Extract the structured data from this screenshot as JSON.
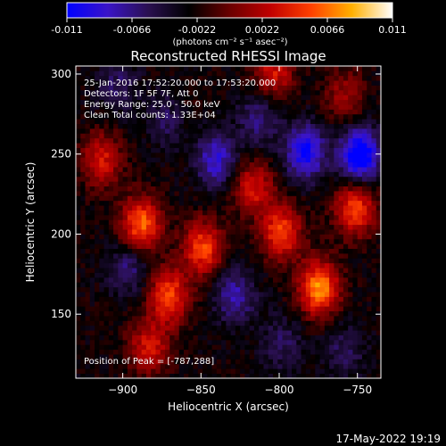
{
  "colorbar": {
    "tick_labels": [
      "-0.011",
      "-0.0066",
      "-0.0022",
      "0.0022",
      "0.0066",
      "0.011"
    ],
    "units_label": "(photons cm⁻² s⁻¹ asec⁻²)",
    "colormap": [
      "#0000ff",
      "#3a14c8",
      "#2a1050",
      "#000000",
      "#6a0000",
      "#c00000",
      "#ff4000",
      "#ffb000",
      "#ffffff"
    ]
  },
  "plot": {
    "title": "Reconstructed RHESSI Image",
    "xlabel": "Heliocentric X (arcsec)",
    "ylabel": "Heliocentric Y (arcsec)",
    "x_tick_labels": [
      "-900",
      "-850",
      "-800",
      "-750"
    ],
    "y_tick_labels": [
      "150",
      "200",
      "250",
      "300"
    ],
    "info_lines": [
      "25-Jan-2016 17:52:20.000 to 17:53:20.000",
      "Detectors: 1F 5F 7F, Att 0",
      "Energy Range: 25.0 - 50.0 keV",
      "Clean    Total counts: 1.33E+04"
    ],
    "peak_label": "Position of Peak = [-787,288]"
  },
  "footer": {
    "timestamp": "17-May-2022 19:19"
  },
  "chart_data": {
    "type": "heatmap",
    "xlabel": "Heliocentric X (arcsec)",
    "ylabel": "Heliocentric Y (arcsec)",
    "xlim": [
      -930,
      -735
    ],
    "ylim": [
      110,
      305
    ],
    "zlim": [
      -0.011,
      0.011
    ],
    "z_units": "photons cm^-2 s^-1 asec^-2",
    "peak_position": [
      -787,
      288
    ],
    "blobs": [
      {
        "x": -890,
        "y": 205,
        "v": 0.009
      },
      {
        "x": -850,
        "y": 190,
        "v": 0.008
      },
      {
        "x": -818,
        "y": 228,
        "v": 0.006
      },
      {
        "x": -800,
        "y": 200,
        "v": 0.008
      },
      {
        "x": -776,
        "y": 165,
        "v": 0.01
      },
      {
        "x": -872,
        "y": 160,
        "v": 0.008
      },
      {
        "x": -915,
        "y": 245,
        "v": 0.006
      },
      {
        "x": -753,
        "y": 215,
        "v": 0.008
      },
      {
        "x": -885,
        "y": 128,
        "v": 0.006
      },
      {
        "x": -865,
        "y": 275,
        "v": 0.003
      },
      {
        "x": -760,
        "y": 285,
        "v": 0.004
      },
      {
        "x": -805,
        "y": 300,
        "v": 0.006
      },
      {
        "x": -842,
        "y": 245,
        "v": -0.006
      },
      {
        "x": -898,
        "y": 178,
        "v": -0.004
      },
      {
        "x": -785,
        "y": 250,
        "v": -0.008
      },
      {
        "x": -750,
        "y": 248,
        "v": -0.01
      },
      {
        "x": -870,
        "y": 272,
        "v": -0.005
      },
      {
        "x": -830,
        "y": 160,
        "v": -0.005
      },
      {
        "x": -800,
        "y": 130,
        "v": -0.003
      },
      {
        "x": -905,
        "y": 292,
        "v": -0.003
      },
      {
        "x": -815,
        "y": 270,
        "v": -0.004
      },
      {
        "x": -760,
        "y": 125,
        "v": -0.003
      }
    ],
    "grid": false
  }
}
